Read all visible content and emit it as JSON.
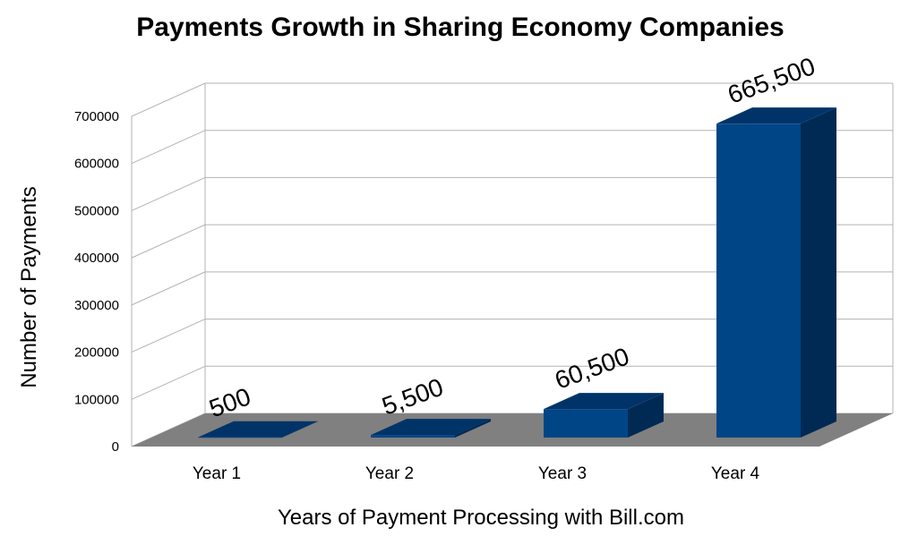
{
  "chart_data": {
    "type": "bar",
    "title": "Payments Growth in Sharing Economy Companies",
    "xlabel": "Years of Payment Processing with Bill.com",
    "ylabel": "Number of Payments",
    "categories": [
      "Year 1",
      "Year 2",
      "Year 3",
      "Year 4"
    ],
    "values": [
      500,
      5500,
      60500,
      665500
    ],
    "data_labels": [
      "500",
      "5,500",
      "60,500",
      "665,500"
    ],
    "ylim": [
      0,
      700000
    ],
    "yticks": [
      0,
      100000,
      200000,
      300000,
      400000,
      500000,
      600000,
      700000
    ],
    "ytick_labels": [
      "0",
      "100000",
      "200000",
      "300000",
      "400000",
      "500000",
      "600000",
      "700000"
    ],
    "grid": true,
    "legend": "none",
    "style": "3d",
    "colors": {
      "bar_front": "#004586",
      "bar_top": "#003468",
      "bar_side": "#002a54",
      "floor": "#808080",
      "grid": "#b3b3b3"
    }
  }
}
